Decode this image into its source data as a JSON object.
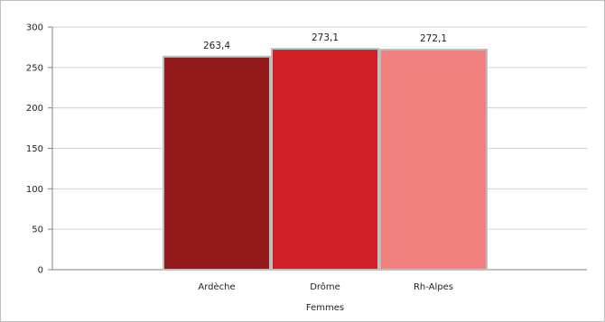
{
  "chart_data": {
    "type": "bar",
    "categories": [
      "Ardèche",
      "Drôme",
      "Rh-Alpes"
    ],
    "values": [
      263.4,
      273.1,
      272.1
    ],
    "value_labels": [
      "263,4",
      "273,1",
      "272,1"
    ],
    "colors": [
      "#921A1D",
      "#CF2027",
      "#F08080"
    ],
    "bar_outline": "#BEBEBE",
    "title": "",
    "xlabel": "Femmes",
    "ylabel": "",
    "ylim": [
      0,
      300
    ],
    "yticks": [
      "0",
      "50",
      "100",
      "150",
      "200",
      "250",
      "300"
    ],
    "grid": true,
    "legend": "none"
  }
}
